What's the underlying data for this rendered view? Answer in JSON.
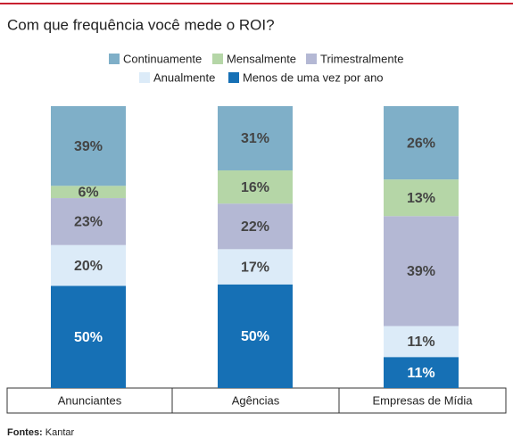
{
  "chart_data": {
    "type": "bar",
    "stacked": "percent",
    "title": "Com que frequência você mede o ROI?",
    "categories": [
      "Anunciantes",
      "Agências",
      "Empresas de Mídia"
    ],
    "series": [
      {
        "name": "Continuamente",
        "color": "#7fafc8",
        "values": [
          39,
          31,
          26
        ]
      },
      {
        "name": "Mensalmente",
        "color": "#b5d6a7",
        "values": [
          6,
          16,
          13
        ]
      },
      {
        "name": "Trimestralmente",
        "color": "#b4b8d4",
        "values": [
          23,
          22,
          39
        ]
      },
      {
        "name": "Anualmente",
        "color": "#dcebf8",
        "values": [
          20,
          17,
          11
        ]
      },
      {
        "name": "Menos de uma vez por ano",
        "color": "#1670b5",
        "values": [
          50,
          50,
          11
        ]
      }
    ],
    "value_labels": [
      [
        "39%",
        "31%",
        "26%"
      ],
      [
        "6%",
        "16%",
        "13%"
      ],
      [
        "23%",
        "22%",
        "39%"
      ],
      [
        "20%",
        "17%",
        "11%"
      ],
      [
        "50%",
        "50%",
        "11%"
      ]
    ],
    "source_label": "Fontes:",
    "source": "Kantar"
  }
}
